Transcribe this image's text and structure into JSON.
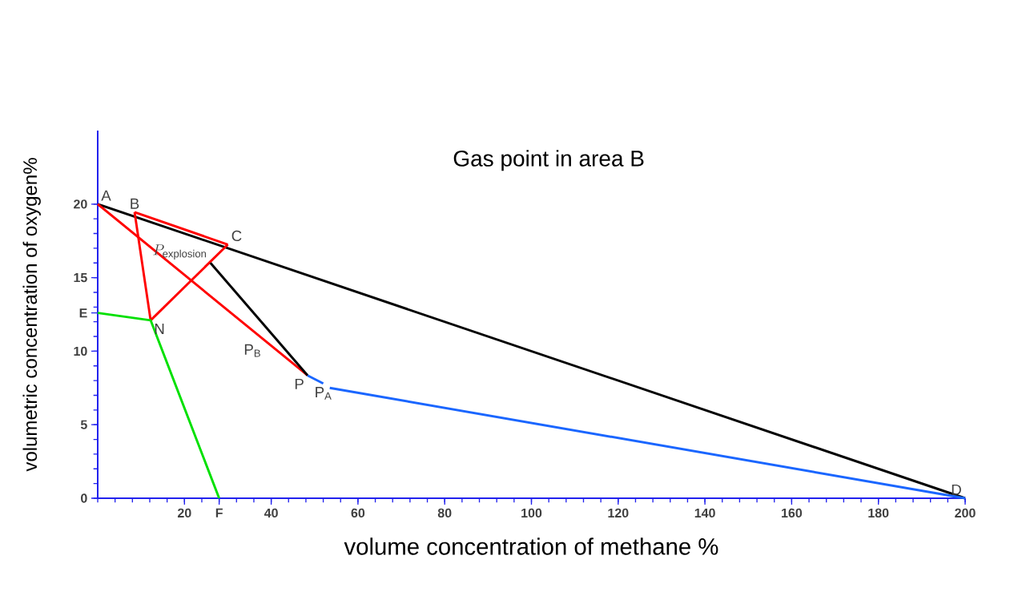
{
  "chart_data": {
    "type": "line",
    "title": "Gas point in area B",
    "xlabel": "volume concentration of methane %",
    "ylabel": "volumetric concentration of oxygen%",
    "xlim": [
      0,
      200
    ],
    "ylim": [
      0,
      25
    ],
    "xticks": [
      20,
      {
        "value": 28,
        "label": "F"
      },
      40,
      60,
      80,
      100,
      120,
      140,
      160,
      180,
      200
    ],
    "yticks": [
      0,
      5,
      10,
      {
        "value": 12.6,
        "label": "E"
      },
      15,
      20
    ],
    "series": [
      {
        "color": "#000000",
        "x": [
          0,
          200
        ],
        "values": [
          20,
          0
        ]
      },
      {
        "color": "#ff0000",
        "x": [
          8.5,
          30
        ],
        "values": [
          19.45,
          17.25
        ]
      },
      {
        "color": "#ff0000",
        "x": [
          12.2,
          30
        ],
        "values": [
          12.1,
          17.25
        ]
      },
      {
        "color": "#ff0000",
        "x": [
          8.5,
          12.2
        ],
        "values": [
          19.45,
          12.1
        ]
      },
      {
        "color": "#ff0000",
        "x": [
          0,
          48.4
        ],
        "values": [
          20,
          8.35
        ]
      },
      {
        "color": "#000000",
        "x": [
          26,
          48.4
        ],
        "values": [
          16,
          8.35
        ]
      },
      {
        "color": "#00e000",
        "x": [
          0,
          12.2,
          28
        ],
        "values": [
          12.6,
          12.1,
          0
        ]
      },
      {
        "color": "#1a66ff",
        "x": [
          48.4,
          52
        ],
        "values": [
          8.35,
          7.8
        ]
      },
      {
        "color": "#1a66ff",
        "x": [
          53.5,
          200
        ],
        "values": [
          7.5,
          0
        ]
      }
    ],
    "annotations": [
      {
        "text": "A",
        "x": 0,
        "y": 20
      },
      {
        "text": "B",
        "x": 8.5,
        "y": 19.45
      },
      {
        "text": "C",
        "x": 30,
        "y": 17.25
      },
      {
        "text": "D",
        "x": 200,
        "y": 0
      },
      {
        "text": "N",
        "x": 12.2,
        "y": 12.1
      },
      {
        "text": "P",
        "x": 48.4,
        "y": 8.35
      },
      {
        "text": "P$_{B}$",
        "x": 38.5,
        "y": 10.7
      },
      {
        "text": "P$_{A}$",
        "x": 52,
        "y": 7.8
      },
      {
        "text": "P_{\\mathrm{explosion}}",
        "x": 26,
        "y": 16
      }
    ],
    "marker": "none",
    "line_style": "solid"
  }
}
